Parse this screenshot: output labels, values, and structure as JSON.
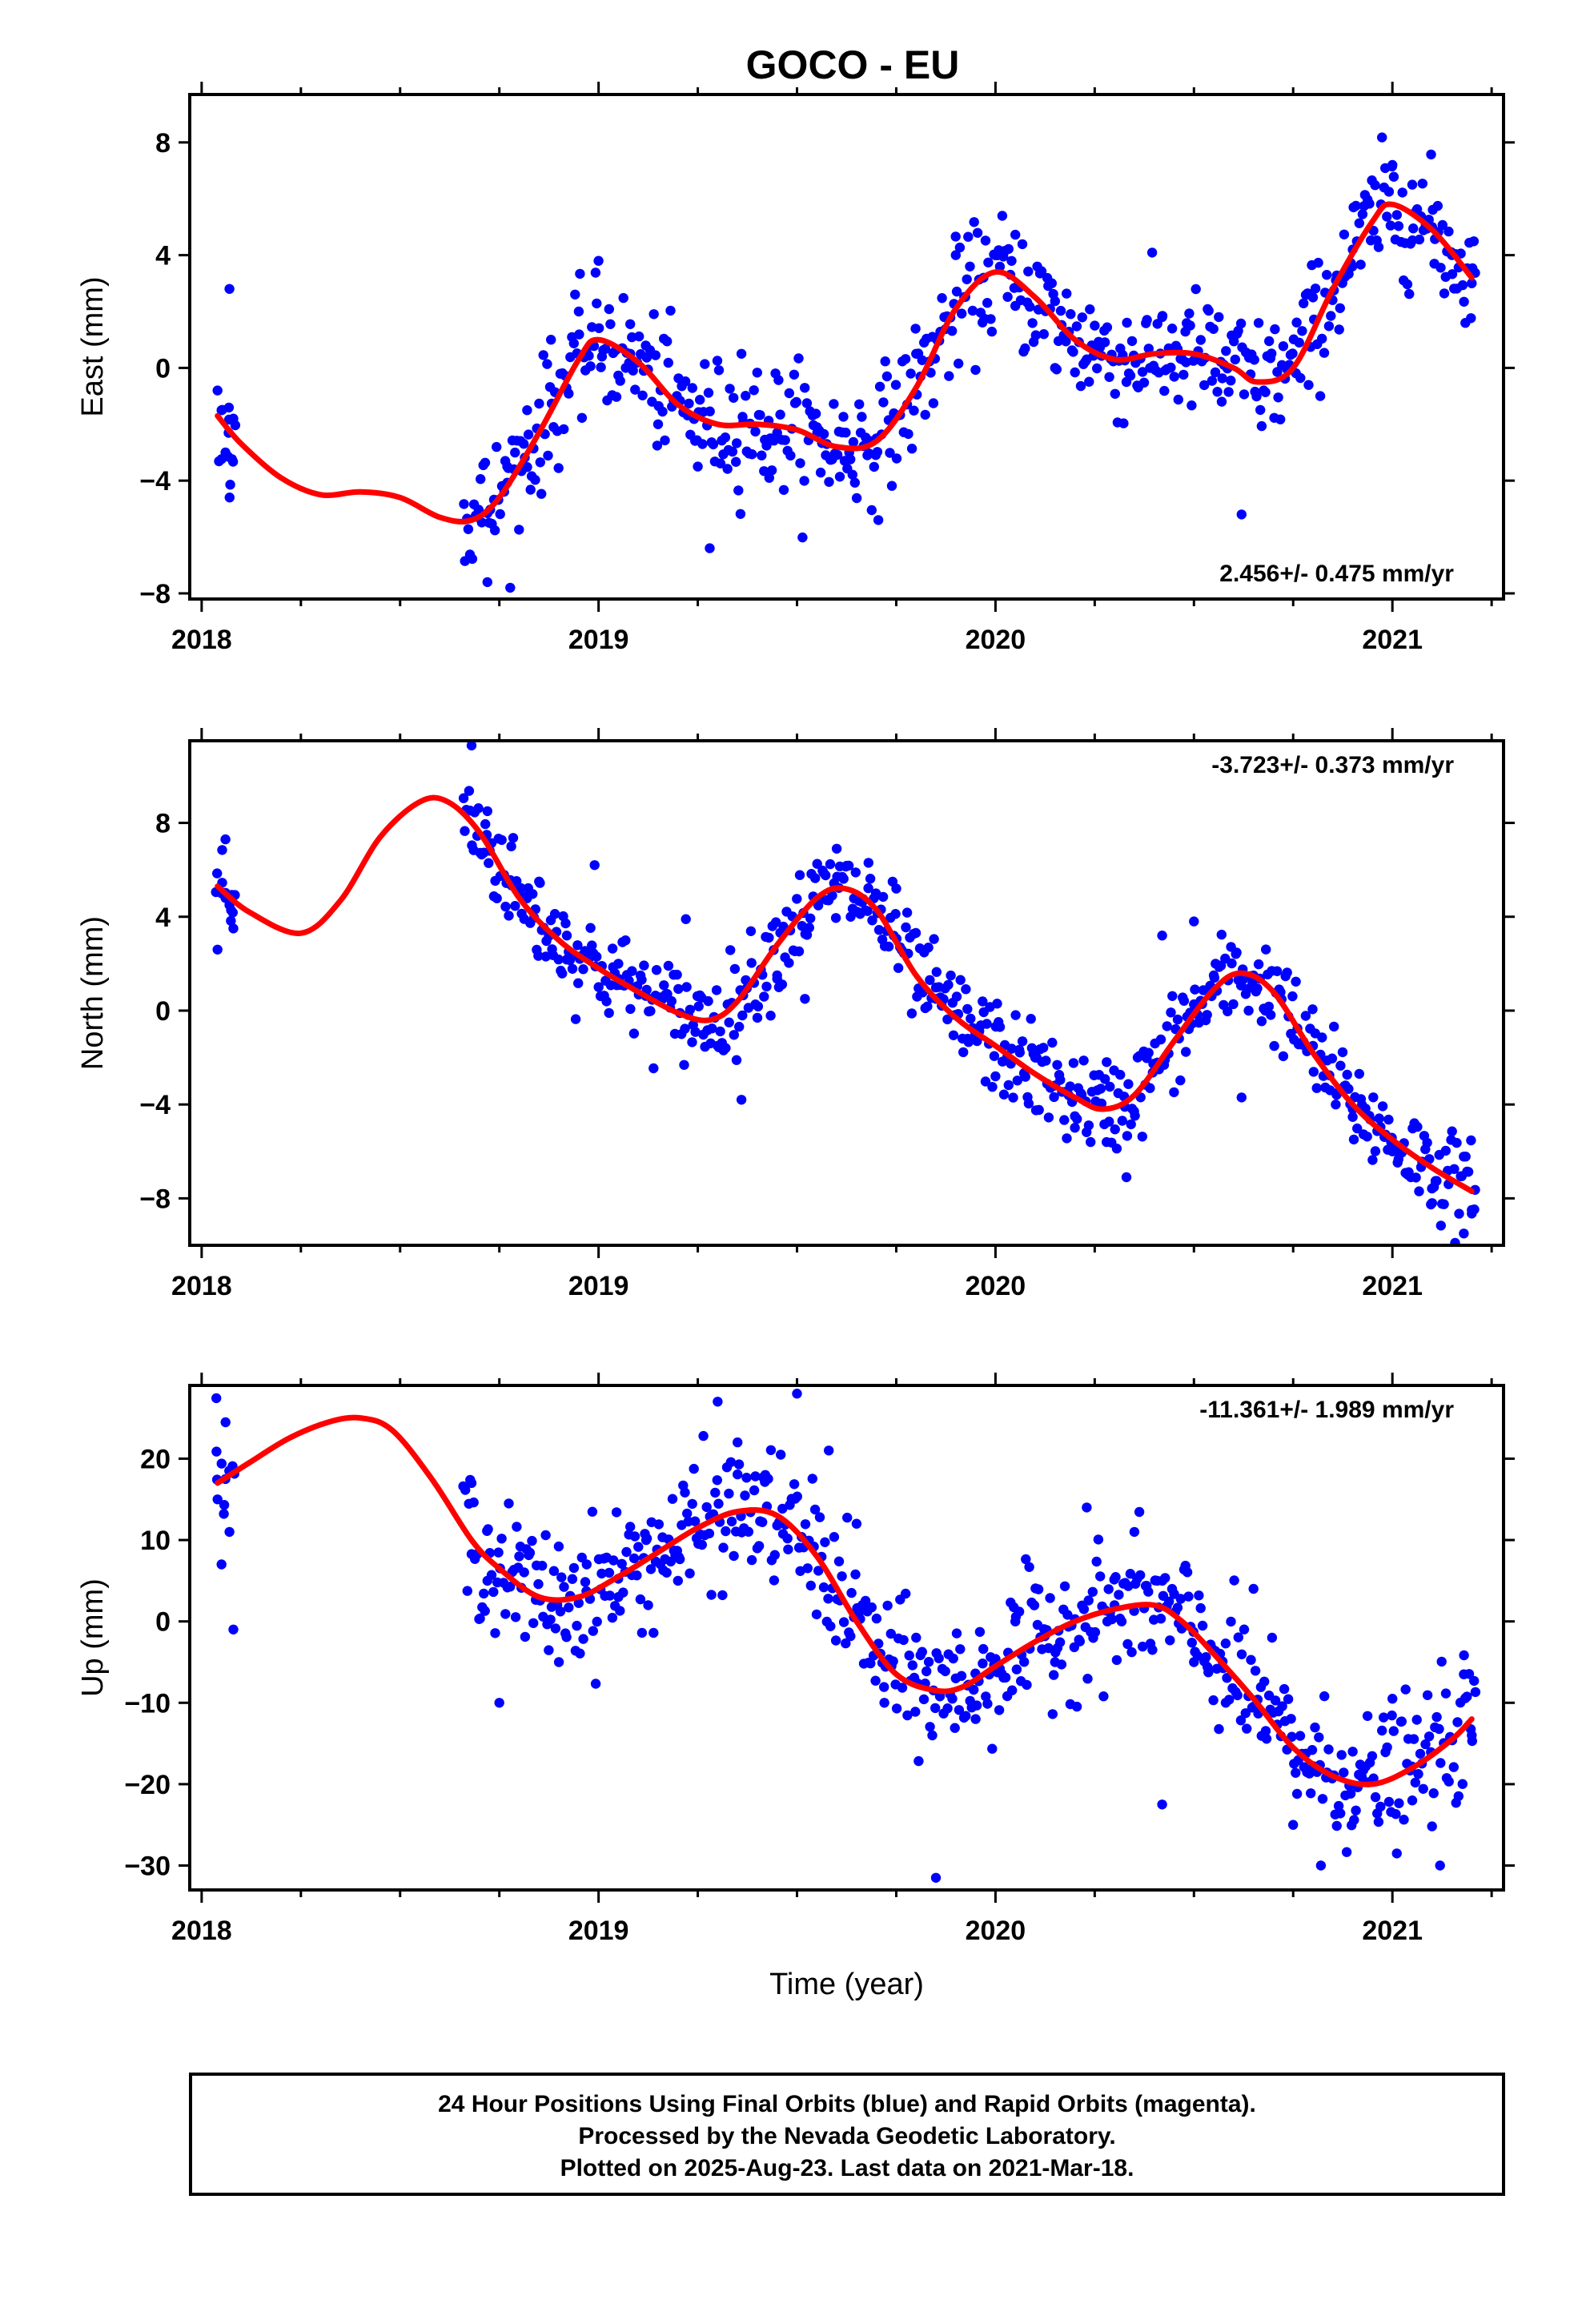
{
  "title": "GOCO - EU",
  "colors": {
    "points": "#0000ff",
    "fit": "#ff0000",
    "frame": "#000000"
  },
  "chart_data": [
    {
      "type": "scatter",
      "ylabel": "East (mm)",
      "xlabel": "",
      "rate": "2.456+/- 0.475 mm/yr",
      "rate_position": "bottom-right",
      "xlim": [
        2017.97,
        2021.28
      ],
      "ylim": [
        -8.2,
        9.7
      ],
      "yticks": [
        -8,
        -4,
        0,
        4,
        8
      ],
      "ytick_labels": [
        "−8",
        "−4",
        "0",
        "4",
        "8"
      ],
      "xticks": [
        2018,
        2019,
        2020,
        2021
      ],
      "xtick_labels": [
        "2018",
        "2019",
        "2020",
        "2021"
      ],
      "grid": false,
      "series": [
        {
          "kind": "fit",
          "x": [
            2018.04,
            2018.1,
            2018.2,
            2018.3,
            2018.4,
            2018.5,
            2018.6,
            2018.68,
            2018.75,
            2018.85,
            2018.95,
            2019.0,
            2019.1,
            2019.2,
            2019.3,
            2019.4,
            2019.5,
            2019.6,
            2019.7,
            2019.8,
            2019.9,
            2020.0,
            2020.1,
            2020.2,
            2020.3,
            2020.4,
            2020.5,
            2020.6,
            2020.66,
            2020.75,
            2020.85,
            2020.95,
            2021.0,
            2021.1,
            2021.2
          ],
          "y": [
            -1.7,
            -2.7,
            -3.9,
            -4.5,
            -4.4,
            -4.6,
            -5.3,
            -5.4,
            -4.6,
            -2.3,
            0.3,
            1.0,
            0.2,
            -1.3,
            -2.0,
            -2.0,
            -2.2,
            -2.8,
            -2.6,
            -0.7,
            2.1,
            3.4,
            2.5,
            1.0,
            0.3,
            0.5,
            0.5,
            0.0,
            -0.5,
            0.0,
            2.8,
            5.2,
            5.8,
            4.9,
            3.2
          ]
        }
      ],
      "points": {
        "x": [
          2018.04,
          2018.05,
          2018.06,
          2018.07,
          2018.08,
          2018.72,
          2018.77,
          2018.82,
          2018.88,
          2018.95,
          2019.0,
          2019.08,
          2019.15,
          2019.25,
          2019.28,
          2019.36,
          2019.43,
          2019.55,
          2019.62,
          2019.7,
          2019.8,
          2019.9,
          2019.97,
          2020.05,
          2020.15,
          2020.25,
          2020.33,
          2020.42,
          2020.48,
          2020.57,
          2020.62,
          2020.8,
          2020.9,
          2021.0,
          2021.05,
          2021.1,
          2021.15,
          2021.2
        ],
        "y": [
          -0.8,
          -1.5,
          -3.0,
          2.8,
          -1.8,
          -7.6,
          -3.5,
          -1.5,
          1.0,
          2.0,
          3.8,
          0.5,
          -2.0,
          -3.5,
          -6.4,
          0.5,
          -3.9,
          -2.1,
          -3.3,
          -2.5,
          0.5,
          4.0,
          3.2,
          2.2,
          0.0,
          1.5,
          -0.5,
          1.8,
          0.2,
          -1.2,
          -5.2,
          2.5,
          4.2,
          7.2,
          6.5,
          5.0,
          4.0,
          3.0
        ]
      }
    },
    {
      "type": "scatter",
      "ylabel": "North (mm)",
      "xlabel": "",
      "rate": "-3.723+/- 0.373 mm/yr",
      "rate_position": "top-right",
      "xlim": [
        2017.97,
        2021.28
      ],
      "ylim": [
        -10.0,
        11.5
      ],
      "yticks": [
        -8,
        -4,
        0,
        4,
        8
      ],
      "ytick_labels": [
        "−8",
        "−4",
        "0",
        "4",
        "8"
      ],
      "xticks": [
        2018,
        2019,
        2020,
        2021
      ],
      "xtick_labels": [
        "2018",
        "2019",
        "2020",
        "2021"
      ],
      "grid": false,
      "series": [
        {
          "kind": "fit",
          "x": [
            2018.04,
            2018.12,
            2018.25,
            2018.35,
            2018.45,
            2018.55,
            2018.62,
            2018.7,
            2018.8,
            2018.9,
            2019.0,
            2019.1,
            2019.2,
            2019.28,
            2019.35,
            2019.45,
            2019.55,
            2019.62,
            2019.7,
            2019.8,
            2019.9,
            2020.0,
            2020.1,
            2020.2,
            2020.27,
            2020.35,
            2020.45,
            2020.55,
            2020.62,
            2020.7,
            2020.8,
            2020.9,
            2021.0,
            2021.1,
            2021.2
          ],
          "y": [
            5.3,
            4.2,
            3.3,
            4.7,
            7.4,
            8.9,
            8.9,
            7.6,
            4.8,
            3.0,
            1.8,
            0.8,
            -0.1,
            -0.4,
            0.4,
            2.8,
            4.8,
            5.2,
            4.3,
            1.5,
            -0.3,
            -1.5,
            -2.7,
            -3.7,
            -4.2,
            -3.6,
            -1.3,
            0.9,
            1.6,
            0.8,
            -1.8,
            -4.0,
            -5.5,
            -6.7,
            -7.7
          ]
        }
      ],
      "points": {
        "x": [
          2018.04,
          2018.05,
          2018.06,
          2018.07,
          2018.08,
          2018.68,
          2018.72,
          2018.78,
          2018.85,
          2018.92,
          2018.99,
          2019.05,
          2019.15,
          2019.22,
          2019.3,
          2019.36,
          2019.45,
          2019.52,
          2019.6,
          2019.68,
          2019.75,
          2019.85,
          2019.93,
          2020.0,
          2020.1,
          2020.2,
          2020.28,
          2020.33,
          2020.42,
          2020.5,
          2020.55,
          2020.62,
          2020.68,
          2020.8,
          2020.9,
          2021.0,
          2021.1,
          2021.18,
          2021.2
        ],
        "y": [
          2.6,
          5.0,
          7.3,
          4.5,
          3.5,
          11.3,
          8.5,
          7.0,
          5.5,
          3.2,
          6.2,
          2.0,
          0.5,
          3.9,
          -1.5,
          -3.8,
          1.5,
          0.5,
          6.9,
          6.3,
          5.2,
          0.5,
          -1.2,
          -2.8,
          -2.0,
          -4.5,
          -5.6,
          -7.1,
          3.2,
          3.8,
          1.5,
          -3.7,
          0.0,
          -1.5,
          -4.2,
          -6.0,
          -8.2,
          -9.5,
          -8.5
        ]
      }
    },
    {
      "type": "scatter",
      "ylabel": "Up (mm)",
      "xlabel": "Time (year)",
      "rate": "-11.361+/- 1.989 mm/yr",
      "rate_position": "top-right",
      "xlim": [
        2017.97,
        2021.28
      ],
      "ylim": [
        -33,
        29
      ],
      "yticks": [
        -30,
        -20,
        -10,
        0,
        10,
        20
      ],
      "ytick_labels": [
        "−30",
        "−20",
        "−10",
        "0",
        "10",
        "20"
      ],
      "xticks": [
        2018,
        2019,
        2020,
        2021
      ],
      "xtick_labels": [
        "2018",
        "2019",
        "2020",
        "2021"
      ],
      "grid": false,
      "series": [
        {
          "kind": "fit",
          "x": [
            2018.04,
            2018.12,
            2018.22,
            2018.32,
            2018.4,
            2018.48,
            2018.58,
            2018.68,
            2018.75,
            2018.85,
            2018.95,
            2019.05,
            2019.15,
            2019.25,
            2019.35,
            2019.45,
            2019.55,
            2019.65,
            2019.75,
            2019.85,
            2019.92,
            2020.0,
            2020.1,
            2020.2,
            2020.3,
            2020.4,
            2020.47,
            2020.55,
            2020.65,
            2020.75,
            2020.85,
            2020.95,
            2021.05,
            2021.15,
            2021.2
          ],
          "y": [
            17.0,
            19.5,
            22.5,
            24.5,
            25.0,
            23.5,
            17.5,
            10.0,
            6.5,
            3.0,
            3.0,
            5.5,
            8.5,
            11.5,
            13.5,
            13.0,
            8.0,
            0.0,
            -6.5,
            -8.5,
            -8.0,
            -5.5,
            -2.5,
            0.0,
            1.5,
            2.0,
            0.0,
            -4.0,
            -9.5,
            -15.5,
            -19.0,
            -20.0,
            -18.0,
            -14.5,
            -12.0
          ]
        }
      ],
      "points": {
        "x": [
          2018.04,
          2018.05,
          2018.06,
          2018.07,
          2018.08,
          2018.68,
          2018.72,
          2018.75,
          2018.8,
          2018.9,
          2018.97,
          2019.05,
          2019.12,
          2019.2,
          2019.3,
          2019.35,
          2019.42,
          2019.5,
          2019.58,
          2019.65,
          2019.72,
          2019.8,
          2019.85,
          2019.9,
          2019.95,
          2020.05,
          2020.15,
          2020.23,
          2020.3,
          2020.35,
          2020.42,
          2020.5,
          2020.58,
          2020.65,
          2020.75,
          2020.82,
          2020.9,
          2021.0,
          2021.05,
          2021.12,
          2021.18,
          2021.2
        ],
        "y": [
          15.0,
          7.0,
          17.5,
          11.0,
          -1.0,
          17.0,
          5.0,
          -10.0,
          8.0,
          -5.0,
          7.0,
          3.0,
          10.0,
          5.0,
          27.0,
          22.0,
          18.0,
          28.0,
          21.0,
          12.0,
          -10.0,
          -2.0,
          -31.5,
          -7.0,
          -12.0,
          0.0,
          -5.0,
          14.0,
          2.0,
          11.0,
          -22.5,
          -5.0,
          -10.0,
          4.0,
          -25.0,
          -30.0,
          -16.0,
          -9.5,
          -22.0,
          -30.0,
          -6.5,
          -14.0
        ]
      }
    }
  ],
  "footer": {
    "line1": "24 Hour Positions Using Final Orbits (blue) and Rapid Orbits (magenta).",
    "line2": "Processed by the Nevada Geodetic Laboratory.",
    "line3": "Plotted on 2025-Aug-23. Last data on 2021-Mar-18."
  }
}
